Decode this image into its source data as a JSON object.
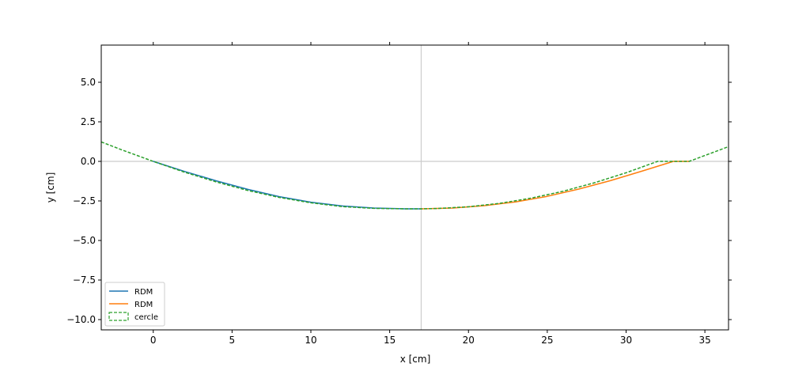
{
  "chart_data": {
    "type": "line",
    "title": "",
    "xlabel": "x [cm]",
    "ylabel": "y [cm]",
    "xlim": [
      -3.3,
      36.5
    ],
    "ylim": [
      -10.65,
      7.35
    ],
    "x_ticks": [
      0,
      5,
      10,
      15,
      20,
      25,
      30,
      35
    ],
    "x_tick_labels": [
      "0",
      "5",
      "10",
      "15",
      "20",
      "25",
      "30",
      "35"
    ],
    "y_ticks": [
      5.0,
      2.5,
      0.0,
      -2.5,
      -5.0,
      -7.5,
      -10.0
    ],
    "y_tick_labels": [
      "5.0",
      "2.5",
      "0.0",
      "−2.5",
      "−5.0",
      "−7.5",
      "−10.0"
    ],
    "reference_lines": {
      "x": 17,
      "y": 0,
      "color": "#cccccc"
    },
    "grid": false,
    "legend_position": "lower left",
    "series": [
      {
        "name": "RDM",
        "color": "#1f77b4",
        "dash": "solid",
        "x": [
          0,
          2,
          4,
          6,
          8,
          10,
          12,
          14,
          16,
          17
        ],
        "y": [
          0,
          -0.64,
          -1.23,
          -1.77,
          -2.23,
          -2.58,
          -2.82,
          -2.95,
          -3.0,
          -3.0
        ]
      },
      {
        "name": "RDM",
        "color": "#ff7f0e",
        "dash": "solid",
        "x": [
          17,
          19,
          21,
          23,
          25,
          27,
          29,
          31,
          33,
          34
        ],
        "y": [
          -3.0,
          -2.95,
          -2.8,
          -2.56,
          -2.21,
          -1.75,
          -1.22,
          -0.62,
          -0.0,
          0.0
        ]
      },
      {
        "name": "cercle",
        "color": "#2ca02c",
        "dash": "dashed",
        "x": [
          -3.3,
          -2,
          0,
          2,
          4,
          6,
          8,
          10,
          12,
          14,
          16,
          17,
          18,
          20,
          22,
          24,
          26,
          28,
          30,
          32,
          34,
          36.5
        ],
        "y": [
          1.23,
          0.73,
          0.0,
          -0.69,
          -1.3,
          -1.84,
          -2.28,
          -2.62,
          -2.86,
          -2.97,
          -3.0,
          -3.0,
          -2.98,
          -2.87,
          -2.65,
          -2.32,
          -1.89,
          -1.35,
          -0.72,
          0.0,
          0.0,
          0.93
        ]
      }
    ]
  }
}
